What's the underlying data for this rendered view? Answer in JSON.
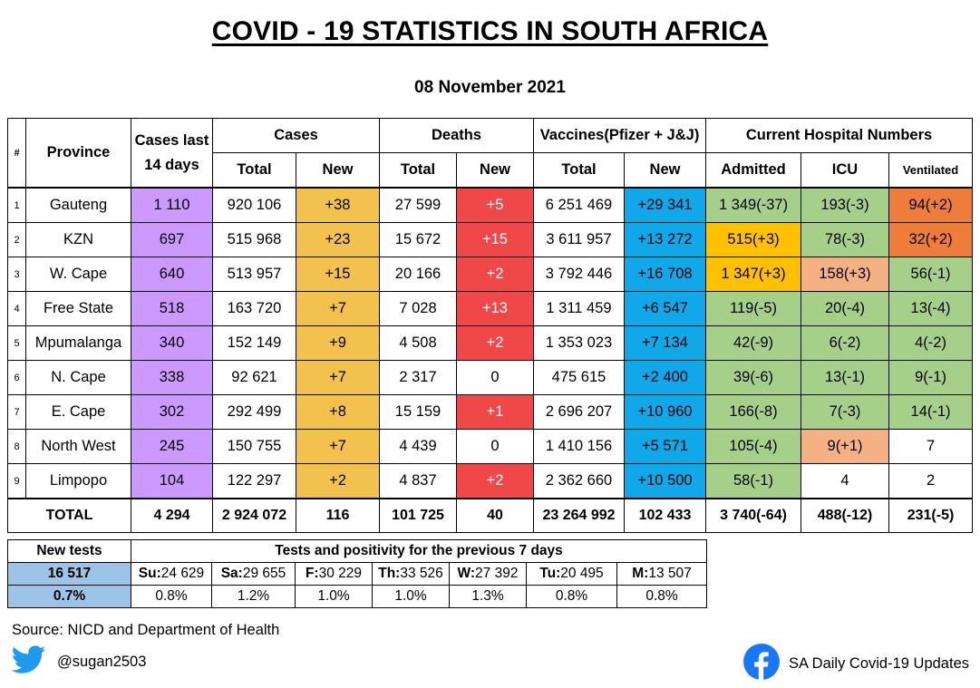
{
  "title": "COVID - 19 STATISTICS IN SOUTH AFRICA",
  "date": "08 November 2021",
  "headers": {
    "num": "#",
    "province": "Province",
    "cases14_line1": "Cases last",
    "cases14_line2": "14 days",
    "cases": "Cases",
    "deaths": "Deaths",
    "vaccines": "Vaccines(Pfizer + J&J)",
    "hospital": "Current Hospital Numbers",
    "total": "Total",
    "new": "New",
    "admitted": "Admitted",
    "icu": "ICU",
    "ventilated": "Ventilated"
  },
  "rows": [
    {
      "n": "1",
      "province": "Gauteng",
      "c14": "1 110",
      "ct": "920 106",
      "cn": "+38",
      "dt": "27 599",
      "dn": "+5",
      "vt": "6 251 469",
      "vn": "+29 341",
      "adm": "1 349(-37)",
      "icu": "193(-3)",
      "vent": "94(+2)"
    },
    {
      "n": "2",
      "province": "KZN",
      "c14": "697",
      "ct": "515 968",
      "cn": "+23",
      "dt": "15 672",
      "dn": "+15",
      "vt": "3 611 957",
      "vn": "+13 272",
      "adm": "515(+3)",
      "icu": "78(-3)",
      "vent": "32(+2)"
    },
    {
      "n": "3",
      "province": "W. Cape",
      "c14": "640",
      "ct": "513 957",
      "cn": "+15",
      "dt": "20 166",
      "dn": "+2",
      "vt": "3 792 446",
      "vn": "+16 708",
      "adm": "1 347(+3)",
      "icu": "158(+3)",
      "vent": "56(-1)"
    },
    {
      "n": "4",
      "province": "Free State",
      "c14": "518",
      "ct": "163 720",
      "cn": "+7",
      "dt": "7 028",
      "dn": "+13",
      "vt": "1 311 459",
      "vn": "+6 547",
      "adm": "119(-5)",
      "icu": "20(-4)",
      "vent": "13(-4)"
    },
    {
      "n": "5",
      "province": "Mpumalanga",
      "c14": "340",
      "ct": "152 149",
      "cn": "+9",
      "dt": "4 508",
      "dn": "+2",
      "vt": "1 353 023",
      "vn": "+7 134",
      "adm": "42(-9)",
      "icu": "6(-2)",
      "vent": "4(-2)"
    },
    {
      "n": "6",
      "province": "N. Cape",
      "c14": "338",
      "ct": "92 621",
      "cn": "+7",
      "dt": "2 317",
      "dn": "0",
      "vt": "475 615",
      "vn": "+2 400",
      "adm": "39(-6)",
      "icu": "13(-1)",
      "vent": "9(-1)"
    },
    {
      "n": "7",
      "province": "E. Cape",
      "c14": "302",
      "ct": "292 499",
      "cn": "+8",
      "dt": "15 159",
      "dn": "+1",
      "vt": "2 696 207",
      "vn": "+10 960",
      "adm": "166(-8)",
      "icu": "7(-3)",
      "vent": "14(-1)"
    },
    {
      "n": "8",
      "province": "North West",
      "c14": "245",
      "ct": "150 755",
      "cn": "+7",
      "dt": "4 439",
      "dn": "0",
      "vt": "1 410 156",
      "vn": "+5 571",
      "adm": "105(-4)",
      "icu": "9(+1)",
      "vent": "7"
    },
    {
      "n": "9",
      "province": "Limpopo",
      "c14": "104",
      "ct": "122 297",
      "cn": "+2",
      "dt": "4 837",
      "dn": "+2",
      "vt": "2 362 660",
      "vn": "+10 500",
      "adm": "58(-1)",
      "icu": "4",
      "vent": "2"
    }
  ],
  "total": {
    "label": "TOTAL",
    "c14": "4 294",
    "ct": "2 924 072",
    "cn": "116",
    "dt": "101 725",
    "dn": "40",
    "vt": "23 264 992",
    "vn": "102 433",
    "adm": "3 740(-64)",
    "icu": "488(-12)",
    "vent": "231(-5)"
  },
  "colors": {
    "cases14": "#cc99ff",
    "cases_new": "#f2c14e",
    "deaths_new": "#f04848",
    "vaccines_new": "#10a8e8",
    "green": "#a6d08a",
    "amber": "#ffc000",
    "salmon": "#f4b183",
    "orange": "#ee7d3b",
    "tests": "#9dc3e6"
  },
  "tests": {
    "new_tests_label": "New tests",
    "new_tests_value": "16 517",
    "positivity_value": "0.7%",
    "header": "Tests and positivity for the previous 7 days",
    "days": [
      {
        "day": "Su:",
        "tests": "24 629",
        "pos": "0.8%"
      },
      {
        "day": "Sa:",
        "tests": "29 655",
        "pos": "1.2%"
      },
      {
        "day": "F:",
        "tests": "30 229",
        "pos": "1.0%"
      },
      {
        "day": "Th:",
        "tests": "33 526",
        "pos": "1.0%"
      },
      {
        "day": "W:",
        "tests": "27 392",
        "pos": "1.3%"
      },
      {
        "day": "Tu:",
        "tests": "20 495",
        "pos": "0.8%"
      },
      {
        "day": "M:",
        "tests": "13 507",
        "pos": "0.8%"
      }
    ]
  },
  "footer": {
    "source": "Source: NICD and Department of Health",
    "twitter_handle": "@sugan2503",
    "facebook_page": "SA Daily Covid-19 Updates",
    "twitter_icon": "twitter-bird-icon",
    "facebook_icon": "facebook-icon"
  }
}
